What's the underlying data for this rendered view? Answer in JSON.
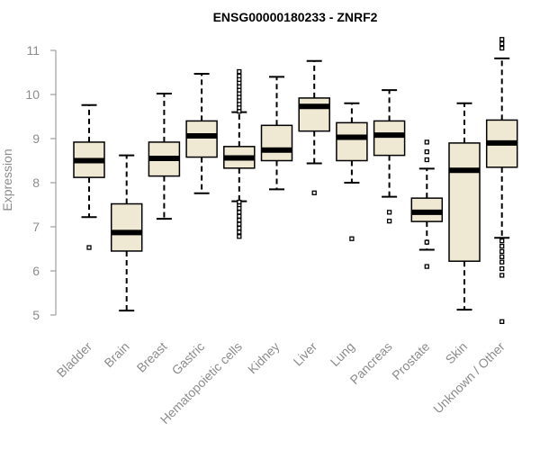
{
  "chart_data": {
    "type": "boxplot",
    "title": "ENSG00000180233 - ZNRF2",
    "ylabel": "Expression",
    "xlabel": "",
    "ylim": [
      4.8,
      11.35
    ],
    "yticks": [
      "5",
      "6",
      "7",
      "8",
      "9",
      "10",
      "11"
    ],
    "box_fill": "#efe8d2",
    "categories": [
      "Bladder",
      "Brain",
      "Breast",
      "Gastric",
      "Hematopoietic cells",
      "Kidney",
      "Liver",
      "Lung",
      "Pancreas",
      "Prostate",
      "Skin",
      "Unknown / Other"
    ],
    "boxes": [
      {
        "category": "Bladder",
        "whisker_low": 7.22,
        "q1": 8.12,
        "median": 8.5,
        "q3": 8.92,
        "whisker_high": 9.76,
        "outliers": [
          6.53
        ]
      },
      {
        "category": "Brain",
        "whisker_low": 5.1,
        "q1": 6.45,
        "median": 6.87,
        "q3": 7.52,
        "whisker_high": 8.62,
        "outliers": []
      },
      {
        "category": "Breast",
        "whisker_low": 7.18,
        "q1": 8.15,
        "median": 8.55,
        "q3": 8.92,
        "whisker_high": 10.02,
        "outliers": []
      },
      {
        "category": "Gastric",
        "whisker_low": 7.76,
        "q1": 8.58,
        "median": 9.06,
        "q3": 9.4,
        "whisker_high": 10.47,
        "outliers": []
      },
      {
        "category": "Hematopoietic cells",
        "whisker_low": 7.58,
        "q1": 8.33,
        "median": 8.56,
        "q3": 8.82,
        "whisker_high": 9.6,
        "outliers": [
          6.78,
          6.88,
          6.97,
          7.06,
          7.15,
          7.24,
          7.33,
          7.42,
          7.5,
          7.56,
          9.62,
          9.7,
          9.78,
          9.86,
          9.94,
          10.02,
          10.1,
          10.18,
          10.26,
          10.34,
          10.42,
          10.52
        ]
      },
      {
        "category": "Kidney",
        "whisker_low": 7.85,
        "q1": 8.5,
        "median": 8.74,
        "q3": 9.3,
        "whisker_high": 10.4,
        "outliers": []
      },
      {
        "category": "Liver",
        "whisker_low": 8.44,
        "q1": 9.17,
        "median": 9.73,
        "q3": 9.92,
        "whisker_high": 10.76,
        "outliers": [
          7.77
        ]
      },
      {
        "category": "Lung",
        "whisker_low": 8.0,
        "q1": 8.5,
        "median": 9.03,
        "q3": 9.36,
        "whisker_high": 9.8,
        "outliers": [
          6.73
        ]
      },
      {
        "category": "Pancreas",
        "whisker_low": 7.68,
        "q1": 8.62,
        "median": 9.08,
        "q3": 9.4,
        "whisker_high": 10.1,
        "outliers": [
          7.13,
          7.33
        ]
      },
      {
        "category": "Prostate",
        "whisker_low": 6.48,
        "q1": 7.12,
        "median": 7.33,
        "q3": 7.65,
        "whisker_high": 8.32,
        "outliers": [
          6.1,
          6.65,
          8.52,
          8.7,
          8.92
        ]
      },
      {
        "category": "Skin",
        "whisker_low": 5.12,
        "q1": 6.22,
        "median": 8.28,
        "q3": 8.9,
        "whisker_high": 9.8,
        "outliers": []
      },
      {
        "category": "Unknown / Other",
        "whisker_low": 6.75,
        "q1": 8.35,
        "median": 8.9,
        "q3": 9.42,
        "whisker_high": 10.82,
        "outliers": [
          4.85,
          5.9,
          6.05,
          6.2,
          6.32,
          6.44,
          6.56,
          6.68,
          11.05,
          11.15,
          11.25
        ]
      }
    ]
  }
}
